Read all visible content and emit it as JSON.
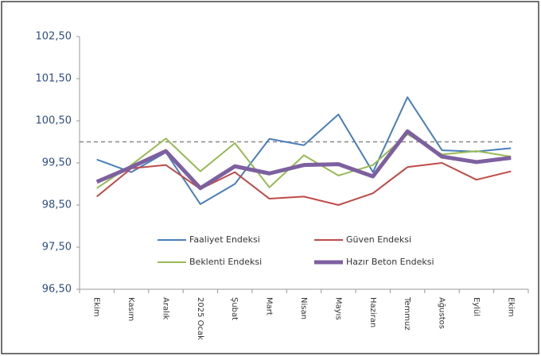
{
  "chart_data": {
    "type": "line",
    "categories": [
      "Ekim",
      "Kasım",
      "Aralık",
      "2025 Ocak",
      "Şubat",
      "Mart",
      "Nisan",
      "Mayıs",
      "Haziran",
      "Temmuz",
      "Ağustos",
      "Eylül",
      "Ekim"
    ],
    "series": [
      {
        "name": "Faaliyet Endeksi",
        "color": "#4a7ebb",
        "width": 2,
        "values": [
          99.58,
          99.28,
          99.75,
          98.52,
          99.0,
          100.07,
          99.92,
          100.65,
          99.28,
          101.06,
          99.8,
          99.77,
          99.85
        ]
      },
      {
        "name": "Güven Endeksi",
        "color": "#be4b48",
        "width": 2,
        "values": [
          98.7,
          99.37,
          99.45,
          98.88,
          99.28,
          98.65,
          98.7,
          98.5,
          98.78,
          99.4,
          99.5,
          99.1,
          99.3
        ]
      },
      {
        "name": "Beklenti Endeksi",
        "color": "#98b954",
        "width": 2,
        "values": [
          98.9,
          99.45,
          100.08,
          99.3,
          99.97,
          98.92,
          99.68,
          99.2,
          99.45,
          100.18,
          99.7,
          99.78,
          99.65
        ]
      },
      {
        "name": "Hazır Beton Endeksi",
        "color": "#7d60a0",
        "width": 5,
        "values": [
          99.05,
          99.4,
          99.78,
          98.9,
          99.42,
          99.25,
          99.45,
          99.47,
          99.18,
          100.25,
          99.65,
          99.52,
          99.62
        ]
      }
    ],
    "ylim": [
      96.5,
      102.5
    ],
    "yticks": [
      {
        "value": 96.5,
        "label": "96,50"
      },
      {
        "value": 97.5,
        "label": "97,50"
      },
      {
        "value": 98.5,
        "label": "98,50"
      },
      {
        "value": 99.5,
        "label": "99,50"
      },
      {
        "value": 100.5,
        "label": "100,50"
      },
      {
        "value": 101.5,
        "label": "101,50"
      },
      {
        "value": 102.5,
        "label": "102,50"
      }
    ],
    "reference_line": 100,
    "grid": false
  }
}
